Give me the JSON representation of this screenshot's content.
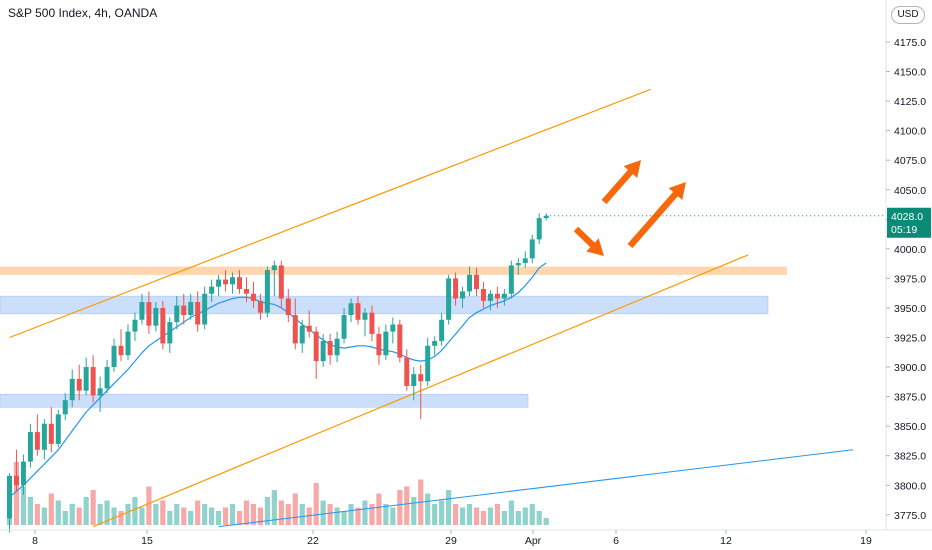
{
  "title": "S&P 500 Index, 4h, OANDA",
  "currency": "USD",
  "chart_data": {
    "type": "candlestick",
    "title": "S&P 500 Index, 4h, OANDA",
    "y_ticks": [
      "4175.0",
      "4150.0",
      "4125.0",
      "4100.0",
      "4075.0",
      "4050.0",
      "4025.0",
      "4000.0",
      "3975.0",
      "3950.0",
      "3925.0",
      "3900.0",
      "3875.0",
      "3850.0",
      "3825.0",
      "3800.0",
      "3775.0"
    ],
    "x_ticks": [
      "8",
      "15",
      "22",
      "29",
      "Apr",
      "6",
      "12",
      "19"
    ],
    "ylim": [
      3765,
      4210
    ],
    "last_price": "4028.0",
    "countdown": "05:19",
    "candles": [
      [
        3772,
        3810,
        3760,
        3808
      ],
      [
        3808,
        3830,
        3795,
        3800
      ],
      [
        3800,
        3826,
        3792,
        3820
      ],
      [
        3820,
        3852,
        3815,
        3845
      ],
      [
        3845,
        3860,
        3825,
        3830
      ],
      [
        3830,
        3856,
        3822,
        3852
      ],
      [
        3852,
        3866,
        3828,
        3835
      ],
      [
        3835,
        3864,
        3832,
        3860
      ],
      [
        3860,
        3878,
        3855,
        3872
      ],
      [
        3872,
        3898,
        3866,
        3890
      ],
      [
        3890,
        3902,
        3872,
        3880
      ],
      [
        3880,
        3908,
        3876,
        3900
      ],
      [
        3900,
        3910,
        3870,
        3876
      ],
      [
        3876,
        3892,
        3862,
        3882
      ],
      [
        3882,
        3906,
        3878,
        3900
      ],
      [
        3900,
        3924,
        3896,
        3918
      ],
      [
        3918,
        3932,
        3905,
        3910
      ],
      [
        3910,
        3936,
        3906,
        3930
      ],
      [
        3930,
        3946,
        3922,
        3940
      ],
      [
        3940,
        3962,
        3936,
        3955
      ],
      [
        3955,
        3964,
        3928,
        3935
      ],
      [
        3935,
        3955,
        3930,
        3950
      ],
      [
        3950,
        3956,
        3915,
        3920
      ],
      [
        3920,
        3942,
        3912,
        3938
      ],
      [
        3938,
        3960,
        3932,
        3952
      ],
      [
        3952,
        3962,
        3936,
        3944
      ],
      [
        3944,
        3962,
        3940,
        3955
      ],
      [
        3955,
        3964,
        3930,
        3936
      ],
      [
        3936,
        3968,
        3932,
        3962
      ],
      [
        3962,
        3974,
        3955,
        3968
      ],
      [
        3968,
        3978,
        3960,
        3974
      ],
      [
        3974,
        3982,
        3964,
        3970
      ],
      [
        3970,
        3980,
        3962,
        3976
      ],
      [
        3976,
        3982,
        3962,
        3966
      ],
      [
        3966,
        3976,
        3955,
        3962
      ],
      [
        3962,
        3972,
        3950,
        3956
      ],
      [
        3956,
        3962,
        3940,
        3946
      ],
      [
        3946,
        3985,
        3942,
        3982
      ],
      [
        3982,
        3990,
        3960,
        3986
      ],
      [
        3986,
        3990,
        3950,
        3958
      ],
      [
        3958,
        3966,
        3938,
        3944
      ],
      [
        3944,
        3958,
        3915,
        3920
      ],
      [
        3920,
        3940,
        3912,
        3935
      ],
      [
        3935,
        3948,
        3925,
        3930
      ],
      [
        3930,
        3934,
        3890,
        3905
      ],
      [
        3905,
        3928,
        3900,
        3922
      ],
      [
        3922,
        3928,
        3902,
        3910
      ],
      [
        3910,
        3930,
        3904,
        3924
      ],
      [
        3924,
        3950,
        3920,
        3944
      ],
      [
        3944,
        3958,
        3938,
        3954
      ],
      [
        3954,
        3960,
        3936,
        3940
      ],
      [
        3940,
        3950,
        3926,
        3946
      ],
      [
        3946,
        3952,
        3922,
        3928
      ],
      [
        3928,
        3934,
        3902,
        3910
      ],
      [
        3910,
        3936,
        3906,
        3930
      ],
      [
        3930,
        3942,
        3920,
        3936
      ],
      [
        3936,
        3940,
        3904,
        3908
      ],
      [
        3908,
        3915,
        3880,
        3884
      ],
      [
        3884,
        3900,
        3872,
        3894
      ],
      [
        3894,
        3902,
        3856,
        3888
      ],
      [
        3888,
        3925,
        3884,
        3918
      ],
      [
        3918,
        3926,
        3910,
        3922
      ],
      [
        3922,
        3946,
        3918,
        3940
      ],
      [
        3940,
        3978,
        3936,
        3975
      ],
      [
        3975,
        3980,
        3952,
        3958
      ],
      [
        3958,
        3968,
        3950,
        3964
      ],
      [
        3964,
        3985,
        3960,
        3978
      ],
      [
        3978,
        3984,
        3960,
        3966
      ],
      [
        3966,
        3972,
        3950,
        3956
      ],
      [
        3956,
        3965,
        3948,
        3962
      ],
      [
        3962,
        3968,
        3950,
        3958
      ],
      [
        3958,
        3966,
        3952,
        3962
      ],
      [
        3962,
        3990,
        3958,
        3986
      ],
      [
        3986,
        3992,
        3978,
        3988
      ],
      [
        3988,
        3998,
        3984,
        3992
      ],
      [
        3992,
        4012,
        3988,
        4008
      ],
      [
        4008,
        4030,
        4004,
        4026
      ],
      [
        4026,
        4030,
        4024,
        4028
      ]
    ],
    "volumes": [
      0.35,
      0.9,
      0.55,
      0.4,
      0.3,
      0.25,
      0.45,
      0.35,
      0.2,
      0.3,
      0.25,
      0.4,
      0.5,
      0.3,
      0.35,
      0.25,
      0.2,
      0.3,
      0.4,
      0.25,
      0.55,
      0.3,
      0.35,
      0.2,
      0.3,
      0.25,
      0.2,
      0.35,
      0.3,
      0.25,
      0.2,
      0.25,
      0.3,
      0.2,
      0.35,
      0.3,
      0.25,
      0.4,
      0.5,
      0.35,
      0.3,
      0.45,
      0.3,
      0.25,
      0.6,
      0.35,
      0.3,
      0.25,
      0.2,
      0.3,
      0.25,
      0.35,
      0.3,
      0.45,
      0.3,
      0.25,
      0.5,
      0.55,
      0.4,
      0.65,
      0.45,
      0.3,
      0.35,
      0.5,
      0.3,
      0.25,
      0.3,
      0.25,
      0.2,
      0.25,
      0.3,
      0.2,
      0.35,
      0.2,
      0.25,
      0.3,
      0.2,
      0.1
    ],
    "moving_average": [
      3790,
      3795,
      3800,
      3806,
      3812,
      3818,
      3824,
      3830,
      3838,
      3846,
      3854,
      3862,
      3868,
      3874,
      3880,
      3886,
      3892,
      3898,
      3905,
      3912,
      3918,
      3922,
      3926,
      3930,
      3934,
      3938,
      3942,
      3945,
      3948,
      3951,
      3954,
      3956,
      3958,
      3959,
      3959,
      3958,
      3955,
      3954,
      3953,
      3950,
      3946,
      3941,
      3936,
      3932,
      3927,
      3923,
      3919,
      3917,
      3916,
      3917,
      3918,
      3918,
      3917,
      3915,
      3914,
      3913,
      3911,
      3908,
      3906,
      3905,
      3906,
      3909,
      3914,
      3921,
      3928,
      3935,
      3942,
      3946,
      3949,
      3952,
      3954,
      3956,
      3959,
      3963,
      3969,
      3976,
      3984,
      3988
    ],
    "annotations": {
      "upper_channel": [
        [
          0,
          3925
        ],
        [
          92,
          4135
        ]
      ],
      "lower_channel": [
        [
          12,
          3765
        ],
        [
          106,
          3995
        ]
      ],
      "long_trendline": [
        [
          30,
          3765
        ],
        [
          121,
          3830
        ]
      ],
      "resistance_zone": [
        3978,
        3985
      ],
      "support_zone_1": [
        3945,
        3960
      ],
      "support_zone_2": [
        3866,
        3877
      ]
    },
    "colors": {
      "up": "#26a69a",
      "down": "#ef5350",
      "ink": "#131722",
      "ma": "#2196f3",
      "channel": "#ff9800",
      "zone_orange": "#ffcc99",
      "zone_blue": "#bbd4f8",
      "arrows": "#f7670c",
      "price_tag": "#0b8a75"
    }
  }
}
